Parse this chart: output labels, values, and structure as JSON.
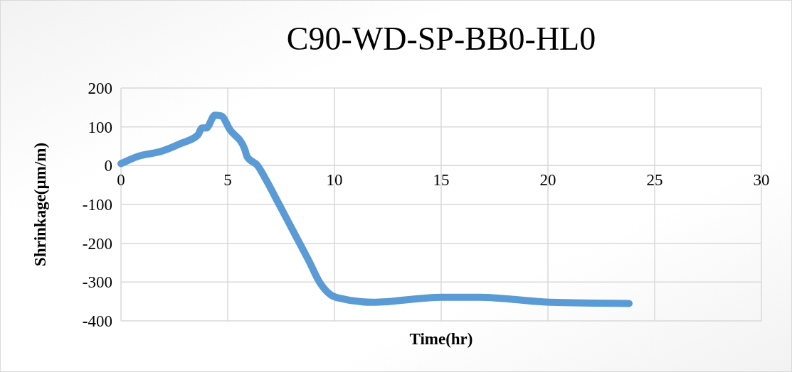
{
  "chart_data": {
    "type": "line",
    "title": "C90-WD-SP-BB0-HL0",
    "xlabel": "Time(hr)",
    "ylabel": "Shrinkage(µm/m)",
    "x": [
      0,
      0.8,
      1.9,
      2.8,
      3.6,
      3.8,
      4.0,
      4.4,
      4.7,
      5.1,
      5.8,
      5.9,
      6.4,
      6.8,
      7.4,
      8.1,
      8.8,
      9.3,
      10.1,
      11.8,
      15,
      16.8,
      20.1,
      23.8
    ],
    "series": [
      {
        "color": "#5b9bd5",
        "values": [
          5,
          24,
          37,
          57,
          79,
          97,
          97,
          130,
          128,
          93,
          42,
          24,
          0,
          -37,
          -99,
          -172,
          -245,
          -300,
          -340,
          -352,
          -339,
          -339,
          -352,
          -355
        ]
      }
    ],
    "xlim": [
      0,
      30
    ],
    "xticks": [
      0,
      5,
      10,
      15,
      20,
      25,
      30
    ],
    "ylim": [
      -400,
      200
    ],
    "yticks": [
      -400,
      -300,
      -200,
      -100,
      0,
      100,
      200
    ],
    "grid": true,
    "marker": "none",
    "line_style": "solid"
  }
}
